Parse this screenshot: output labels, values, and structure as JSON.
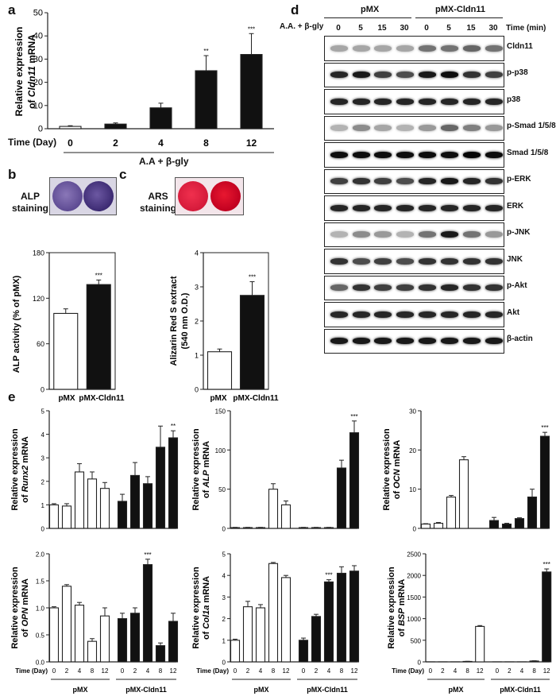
{
  "panels": {
    "a": "a",
    "b": "b",
    "c": "c",
    "d": "d",
    "e": "e"
  },
  "panel_a": {
    "ylabel_line1": "Relative expression",
    "ylabel_pre": "of ",
    "ylabel_gene": "Cldn11",
    "ylabel_post": " mRNA",
    "xrow_label": "Time (Day)",
    "treatment": "A.A + β-gly"
  },
  "panel_b": {
    "stain_label_1": "ALP",
    "stain_label_2": "staining"
  },
  "panel_c": {
    "stain_label_1": "ARS",
    "stain_label_2": "staining"
  },
  "panel_d": {
    "treatment_label": "A.A. + β-gly",
    "time_label": "Time (min)",
    "groups": [
      "pMX",
      "pMX-Cldn11"
    ],
    "times": [
      "0",
      "5",
      "15",
      "30",
      "0",
      "5",
      "15",
      "30"
    ],
    "proteins": [
      "Cldn11",
      "p-p38",
      "p38",
      "p-Smad 1/5/8",
      "Smad 1/5/8",
      "p-ERK",
      "ERK",
      "p-JNK",
      "JNK",
      "p-Akt",
      "Akt",
      "β-actin"
    ]
  },
  "panel_e": {
    "time_label": "Time (Day)",
    "groups": [
      "pMX",
      "pMX-Cldn11"
    ]
  },
  "chart_data": [
    {
      "id": "a",
      "type": "bar",
      "categories": [
        "0",
        "2",
        "4",
        "8",
        "12"
      ],
      "values": [
        1,
        2,
        9,
        25,
        32
      ],
      "errors": [
        0.3,
        0.5,
        2,
        6.5,
        9
      ],
      "ylim": [
        0,
        50
      ],
      "yticks": [
        "0",
        "10",
        "20",
        "30",
        "40",
        "50"
      ],
      "significance": [
        "",
        "",
        "",
        "**",
        "***"
      ],
      "ylabel": "Relative expression of Cldn11 mRNA",
      "xlabel": "Time (Day)"
    },
    {
      "id": "b",
      "type": "bar",
      "categories": [
        "pMX",
        "pMX-Cldn11"
      ],
      "values": [
        100,
        138
      ],
      "errors": [
        6,
        6
      ],
      "ylim": [
        0,
        180
      ],
      "yticks": [
        "0",
        "60",
        "120",
        "180"
      ],
      "significance": [
        "",
        "***"
      ],
      "ylabel": "ALP activity (% of pMX)"
    },
    {
      "id": "c",
      "type": "bar",
      "categories": [
        "pMX",
        "pMX-Cldn11"
      ],
      "values": [
        1.1,
        2.75
      ],
      "errors": [
        0.08,
        0.4
      ],
      "ylim": [
        0,
        4
      ],
      "yticks": [
        "0",
        "1",
        "2",
        "3",
        "4"
      ],
      "significance": [
        "",
        "***"
      ],
      "ylabel": "Alizarin Red S extract (540 nm O.D.)"
    },
    {
      "id": "e1",
      "type": "bar",
      "gene": "Runx2",
      "x": [
        "0",
        "2",
        "4",
        "8",
        "12",
        "0",
        "2",
        "4",
        "8",
        "12"
      ],
      "values": [
        1.0,
        0.95,
        2.4,
        2.1,
        1.7,
        1.15,
        2.25,
        1.9,
        3.45,
        3.85
      ],
      "errors": [
        0.05,
        0.1,
        0.35,
        0.3,
        0.25,
        0.3,
        0.55,
        0.3,
        0.9,
        0.3
      ],
      "ylim": [
        0,
        5
      ],
      "yticks": [
        "0",
        "1",
        "2",
        "3",
        "4",
        "5"
      ],
      "significance": [
        "",
        "",
        "",
        "",
        "",
        "",
        "",
        "",
        "",
        "**"
      ],
      "ylabel": "Relative expression of Runx2 mRNA"
    },
    {
      "id": "e2",
      "type": "bar",
      "gene": "ALP",
      "x": [
        "0",
        "2",
        "4",
        "8",
        "12",
        "0",
        "2",
        "4",
        "8",
        "12"
      ],
      "values": [
        1,
        1,
        1,
        50,
        30,
        1,
        1,
        1,
        77,
        122
      ],
      "errors": [
        0.3,
        0.3,
        0.3,
        7,
        5,
        0.3,
        0.3,
        0.3,
        10,
        15
      ],
      "ylim": [
        0,
        150
      ],
      "yticks": [
        "0",
        "50",
        "100",
        "150"
      ],
      "significance": [
        "",
        "",
        "",
        "",
        "",
        "",
        "",
        "",
        "",
        "***"
      ],
      "ylabel": "Relative expression of ALP mRNA"
    },
    {
      "id": "e3",
      "type": "bar",
      "gene": "OCN",
      "x": [
        "0",
        "2",
        "4",
        "8",
        "12",
        "0",
        "2",
        "4",
        "8",
        "12"
      ],
      "values": [
        1.1,
        1.3,
        8,
        17.5,
        0,
        2,
        1.1,
        2.5,
        8,
        23.5
      ],
      "errors": [
        0.1,
        0.2,
        0.4,
        0.8,
        0,
        0.8,
        0.2,
        0.2,
        2,
        1
      ],
      "ylim": [
        0,
        30
      ],
      "yticks": [
        "0",
        "10",
        "20",
        "30"
      ],
      "significance": [
        "",
        "",
        "",
        "",
        "",
        "",
        "",
        "",
        "",
        "***"
      ],
      "ylabel": "Relative expression of OCN mRNA"
    },
    {
      "id": "e4",
      "type": "bar",
      "gene": "OPN",
      "x": [
        "0",
        "2",
        "4",
        "8",
        "12",
        "0",
        "2",
        "4",
        "8",
        "12"
      ],
      "values": [
        1.0,
        1.4,
        1.05,
        0.38,
        0.85,
        0.8,
        0.9,
        1.8,
        0.3,
        0.75
      ],
      "errors": [
        0.02,
        0.03,
        0.05,
        0.05,
        0.15,
        0.1,
        0.1,
        0.1,
        0.05,
        0.15
      ],
      "ylim": [
        0,
        2.0
      ],
      "yticks": [
        "0.0",
        "0.5",
        "1.0",
        "1.5",
        "2.0"
      ],
      "significance": [
        "",
        "",
        "",
        "",
        "",
        "",
        "",
        "***",
        "",
        ""
      ],
      "ylabel": "Relative expression of OPN mRNA"
    },
    {
      "id": "e5",
      "type": "bar",
      "gene": "Col1a",
      "x": [
        "0",
        "2",
        "4",
        "8",
        "12",
        "0",
        "2",
        "4",
        "8",
        "12"
      ],
      "values": [
        1,
        2.55,
        2.5,
        4.55,
        3.9,
        1,
        2.1,
        3.7,
        4.1,
        4.2
      ],
      "errors": [
        0.05,
        0.25,
        0.15,
        0.05,
        0.1,
        0.1,
        0.1,
        0.1,
        0.3,
        0.25
      ],
      "ylim": [
        0,
        5
      ],
      "yticks": [
        "0",
        "1",
        "2",
        "3",
        "4",
        "5"
      ],
      "significance": [
        "",
        "",
        "",
        "",
        "",
        "",
        "",
        "***",
        "",
        ""
      ],
      "ylabel": "Relative expression of Col1a mRNA"
    },
    {
      "id": "e6",
      "type": "bar",
      "gene": "BSP",
      "x": [
        "0",
        "2",
        "4",
        "8",
        "12",
        "0",
        "2",
        "4",
        "8",
        "12"
      ],
      "values": [
        1,
        1,
        1,
        10,
        820,
        1,
        1,
        1,
        20,
        2080
      ],
      "errors": [
        0,
        0,
        0,
        3,
        20,
        0,
        0,
        0,
        5,
        70
      ],
      "ylim": [
        0,
        2500
      ],
      "yticks": [
        "0",
        "500",
        "1000",
        "1500",
        "2000",
        "2500"
      ],
      "significance": [
        "",
        "",
        "",
        "",
        "",
        "",
        "",
        "",
        "",
        "***"
      ],
      "ylabel": "Relative expression of BSP mRNA"
    }
  ]
}
